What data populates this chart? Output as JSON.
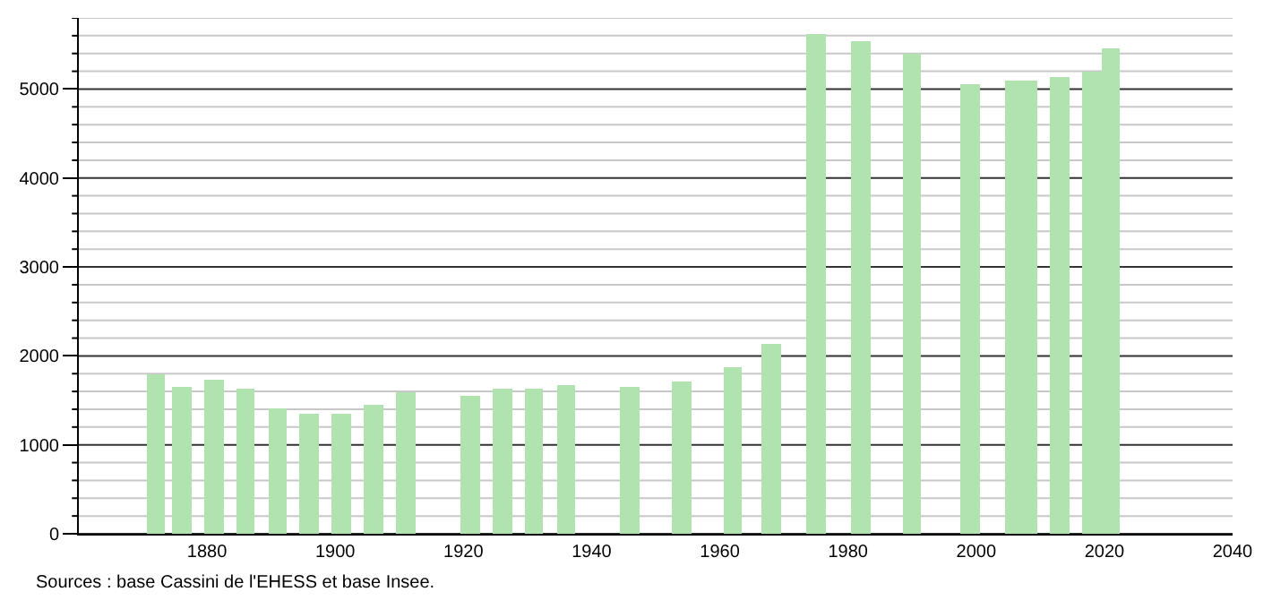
{
  "chart_data": {
    "type": "bar",
    "x": [
      1872,
      1876,
      1881,
      1886,
      1891,
      1896,
      1901,
      1906,
      1911,
      1921,
      1926,
      1931,
      1936,
      1946,
      1954,
      1962,
      1968,
      1975,
      1982,
      1990,
      1999,
      2006,
      2008,
      2013,
      2018,
      2021
    ],
    "values": [
      1790,
      1660,
      1740,
      1640,
      1400,
      1340,
      1340,
      1460,
      1590,
      1560,
      1640,
      1640,
      1680,
      1660,
      1720,
      1880,
      2140,
      5620,
      5540,
      5390,
      5060,
      5100,
      5100,
      5140,
      5200,
      5460
    ],
    "color": "#b0e3b0",
    "xlim": [
      1860,
      2040
    ],
    "xticks": [
      1880,
      1900,
      1920,
      1940,
      1960,
      1980,
      2000,
      2020,
      2040
    ],
    "ylim": [
      0,
      5800
    ],
    "yticks": [
      0,
      {
        "value": 200,
        "label": null
      },
      {
        "value": 400,
        "label": null
      },
      {
        "value": 600,
        "label": null
      },
      {
        "value": 800,
        "label": null
      },
      1000,
      {
        "value": 1200,
        "label": null
      },
      {
        "value": 1400,
        "label": null
      },
      {
        "value": 1600,
        "label": null
      },
      {
        "value": 1800,
        "label": null
      },
      2000,
      {
        "value": 2200,
        "label": null
      },
      {
        "value": 2400,
        "label": null
      },
      {
        "value": 2600,
        "label": null
      },
      {
        "value": 2800,
        "label": null
      },
      3000,
      {
        "value": 3200,
        "label": null
      },
      {
        "value": 3400,
        "label": null
      },
      {
        "value": 3600,
        "label": null
      },
      {
        "value": 3800,
        "label": null
      },
      4000,
      {
        "value": 4200,
        "label": null
      },
      {
        "value": 4400,
        "label": null
      },
      {
        "value": 4600,
        "label": null
      },
      {
        "value": 4800,
        "label": null
      },
      5000,
      {
        "value": 5200,
        "label": null
      },
      {
        "value": 5400,
        "label": null
      },
      {
        "value": 5600,
        "label": null
      },
      {
        "value": 5800,
        "label": null
      }
    ],
    "grid": "y",
    "annotations": [
      "Sources : base Cassini de l'EHESS et base Insee."
    ]
  }
}
